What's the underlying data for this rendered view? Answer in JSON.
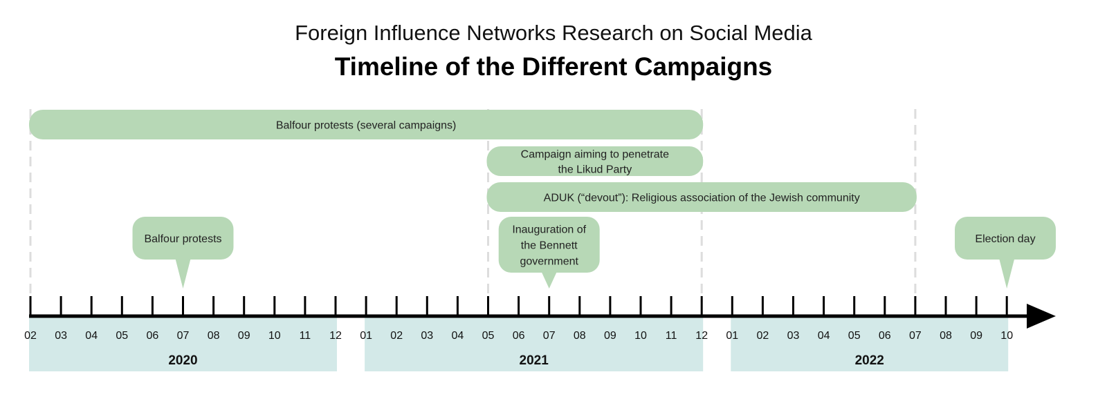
{
  "header": {
    "subtitle": "Foreign Influence Networks Research on Social Media",
    "title": "Timeline of the Different Campaigns"
  },
  "colors": {
    "campaign_fill": "#b7d8b6",
    "year_band_fill": "#d3e9e8",
    "axis": "#000000",
    "guide": "#dddddd"
  },
  "timeline": {
    "start": "2020-02",
    "end": "2022-10",
    "month_labels": [
      "02",
      "03",
      "04",
      "05",
      "06",
      "07",
      "08",
      "09",
      "10",
      "11",
      "12",
      "01",
      "02",
      "03",
      "04",
      "05",
      "06",
      "07",
      "08",
      "09",
      "10",
      "11",
      "12",
      "01",
      "02",
      "03",
      "04",
      "05",
      "06",
      "07",
      "08",
      "09",
      "10"
    ],
    "years": [
      {
        "label": "2020",
        "from": "2020-02",
        "to": "2020-12"
      },
      {
        "label": "2021",
        "from": "2021-01",
        "to": "2021-12"
      },
      {
        "label": "2022",
        "from": "2022-01",
        "to": "2022-10"
      }
    ]
  },
  "campaigns": [
    {
      "label_lines": [
        "Balfour protests (several campaigns)"
      ],
      "from": "2020-02",
      "to": "2021-12"
    },
    {
      "label_lines": [
        "Campaign aiming to penetrate",
        "the Likud Party"
      ],
      "from": "2021-05",
      "to": "2021-12"
    },
    {
      "label_lines": [
        "ADUK (“devout”): Religious association of the Jewish community"
      ],
      "from": "2021-05",
      "to": "2022-07"
    }
  ],
  "events": [
    {
      "label_lines": [
        "Balfour protests"
      ],
      "date": "2020-07"
    },
    {
      "label_lines": [
        "Inauguration of",
        "the Bennett",
        "government"
      ],
      "date": "2021-07"
    },
    {
      "label_lines": [
        "Election day"
      ],
      "date": "2022-10"
    }
  ]
}
